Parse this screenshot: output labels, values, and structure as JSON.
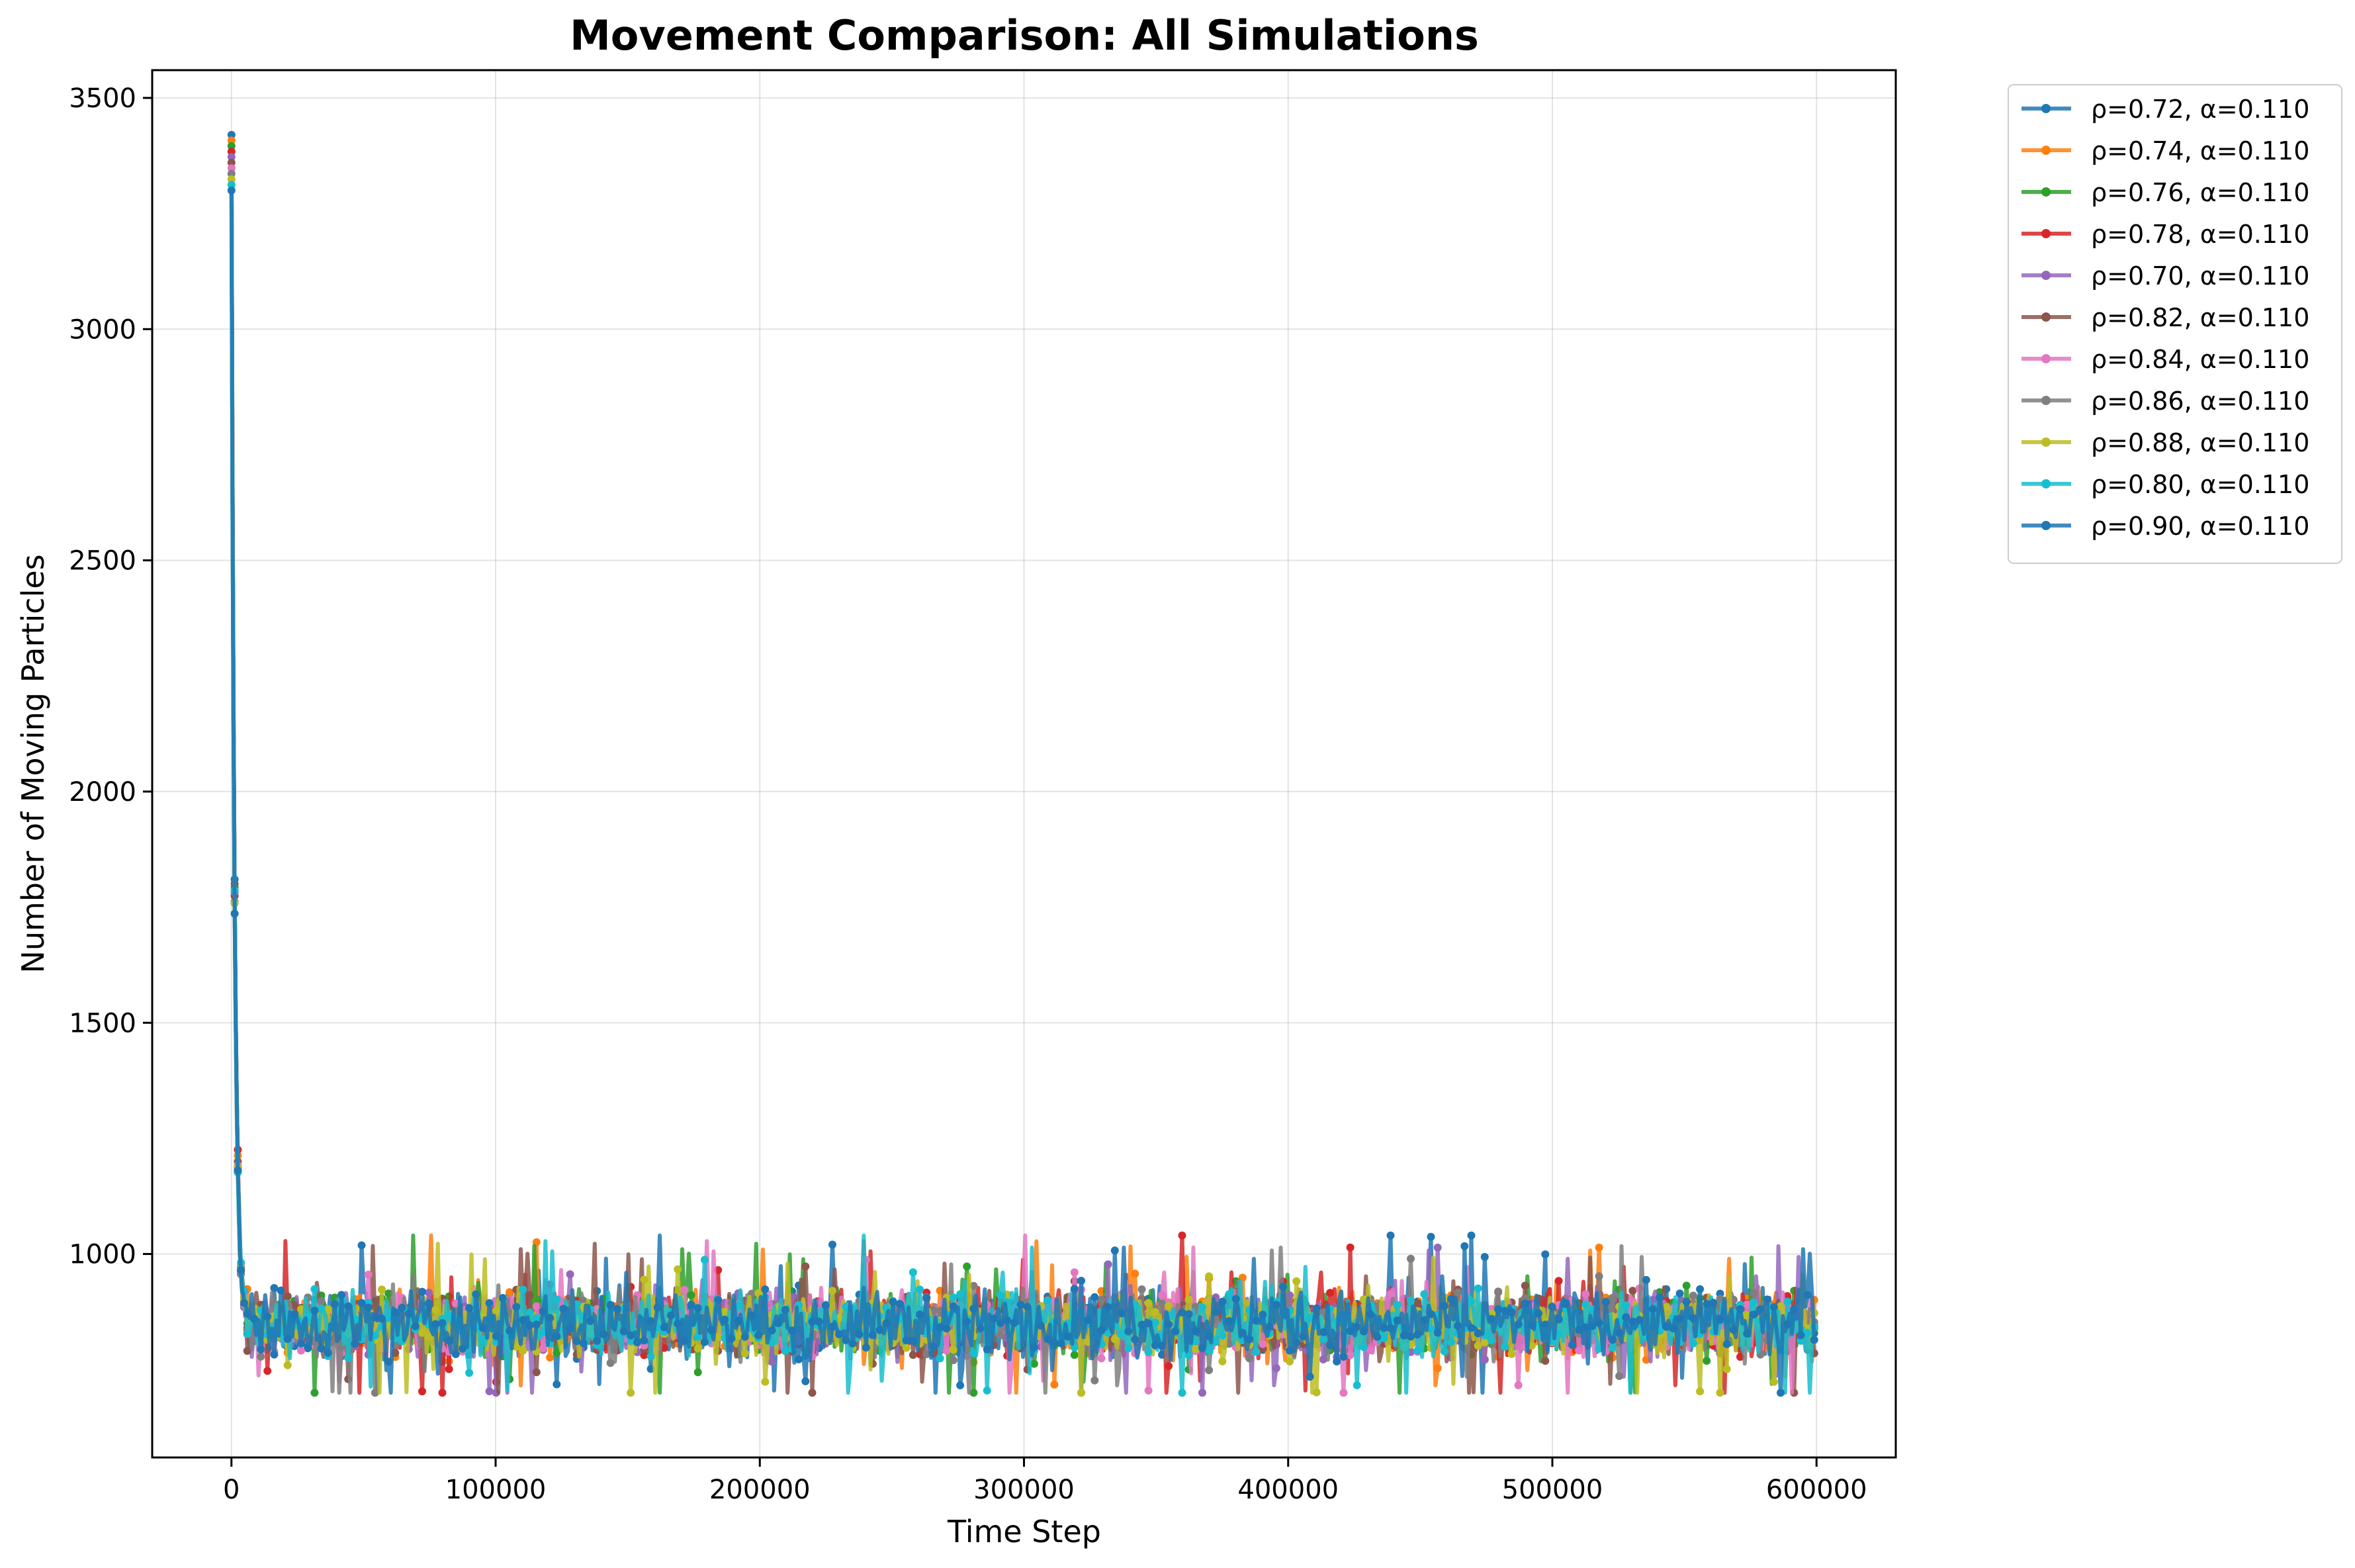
{
  "chart_data": {
    "type": "line",
    "title": "Movement Comparison: All Simulations",
    "xlabel": "Time Step",
    "ylabel": "Number of Moving Particles",
    "xlim": [
      -30000,
      630000
    ],
    "ylim": [
      560,
      3560
    ],
    "xticks": [
      0,
      100000,
      200000,
      300000,
      400000,
      500000,
      600000
    ],
    "yticks": [
      1000,
      1500,
      2000,
      2500,
      3000,
      3500
    ],
    "grid": true,
    "legend_position": "outside-top-right",
    "initial_peak": 3420,
    "steady_state": {
      "mean": 850,
      "typical_range": [
        770,
        930
      ],
      "extremes": [
        700,
        1040
      ]
    },
    "series": [
      {
        "name": "ρ=0.72, α=0.110",
        "color": "#1f77b4"
      },
      {
        "name": "ρ=0.74, α=0.110",
        "color": "#ff7f0e"
      },
      {
        "name": "ρ=0.76, α=0.110",
        "color": "#2ca02c"
      },
      {
        "name": "ρ=0.78, α=0.110",
        "color": "#d62728"
      },
      {
        "name": "ρ=0.70, α=0.110",
        "color": "#9467bd"
      },
      {
        "name": "ρ=0.82, α=0.110",
        "color": "#8c564b"
      },
      {
        "name": "ρ=0.84, α=0.110",
        "color": "#e377c2"
      },
      {
        "name": "ρ=0.86, α=0.110",
        "color": "#7f7f7f"
      },
      {
        "name": "ρ=0.88, α=0.110",
        "color": "#bcbd22"
      },
      {
        "name": "ρ=0.80, α=0.110",
        "color": "#17becf"
      },
      {
        "name": "ρ=0.90, α=0.110",
        "color": "#1f77b4"
      }
    ]
  }
}
